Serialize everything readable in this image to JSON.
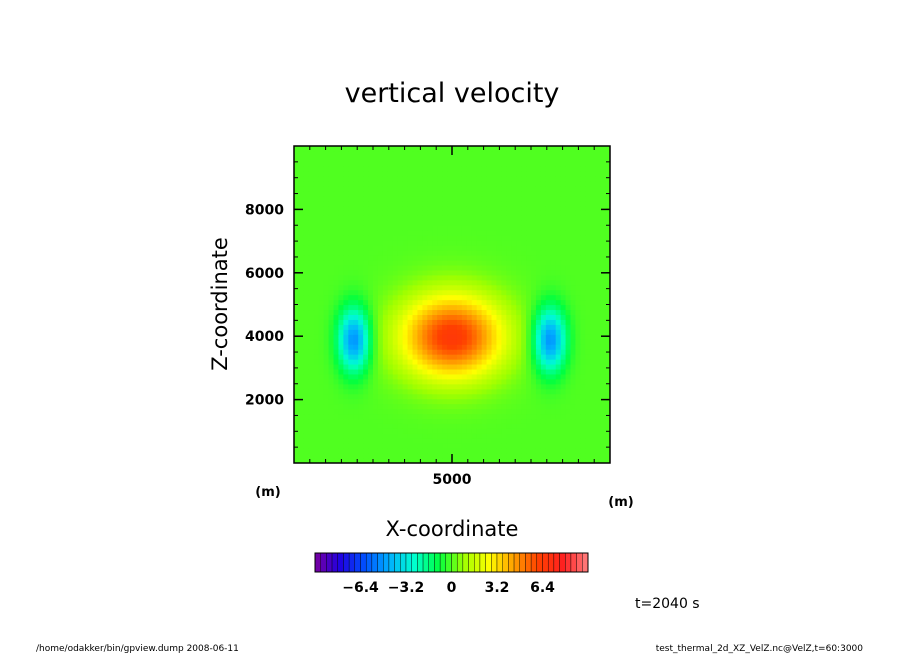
{
  "chart_data": {
    "type": "heatmap",
    "title": "vertical velocity",
    "xlabel": "X-coordinate",
    "ylabel": "Z-coordinate",
    "x_unit": "(m)",
    "y_unit": "(m)",
    "xlim": [
      0,
      10000
    ],
    "ylim": [
      0,
      10000
    ],
    "x_ticks": [
      5000
    ],
    "y_ticks": [
      2000,
      4000,
      6000,
      8000
    ],
    "x_tick_labels": [
      "5000"
    ],
    "y_tick_labels": [
      "2000",
      "4000",
      "6000",
      "8000"
    ],
    "field": {
      "variable": "VelZ",
      "description_of_features": [
        {
          "kind": "updraft",
          "x_center": 5000,
          "z_center": 4000,
          "peak": 6.5,
          "x_halfwidth": 1600,
          "z_halfwidth": 1300
        },
        {
          "kind": "downdraft",
          "x_center": 1900,
          "z_center": 3900,
          "peak": -5.0,
          "x_halfwidth": 500,
          "z_halfwidth": 1000
        },
        {
          "kind": "downdraft",
          "x_center": 8100,
          "z_center": 3900,
          "peak": -5.0,
          "x_halfwidth": 500,
          "z_halfwidth": 1000
        }
      ]
    },
    "colorbar": {
      "min": -9.6,
      "max": 9.6,
      "tick_values": [
        -6.4,
        -3.2,
        0,
        3.2,
        6.4
      ],
      "tick_labels": [
        "−6.4",
        "−3.2",
        "0",
        "3.2",
        "6.4"
      ],
      "colors": [
        "#7a00a0",
        "#2000e0",
        "#0050ff",
        "#00b0ff",
        "#00ffd0",
        "#00ff40",
        "#a0ff00",
        "#ffff00",
        "#ffa000",
        "#ff4000",
        "#ff2020",
        "#ff8080"
      ]
    },
    "time_label": "t=2040 s"
  },
  "footer": {
    "left": "/home/odakker/bin/gpview.dump  2008-06-11",
    "right": "test_thermal_2d_XZ_VelZ.nc@VelZ,t=60:3000"
  }
}
